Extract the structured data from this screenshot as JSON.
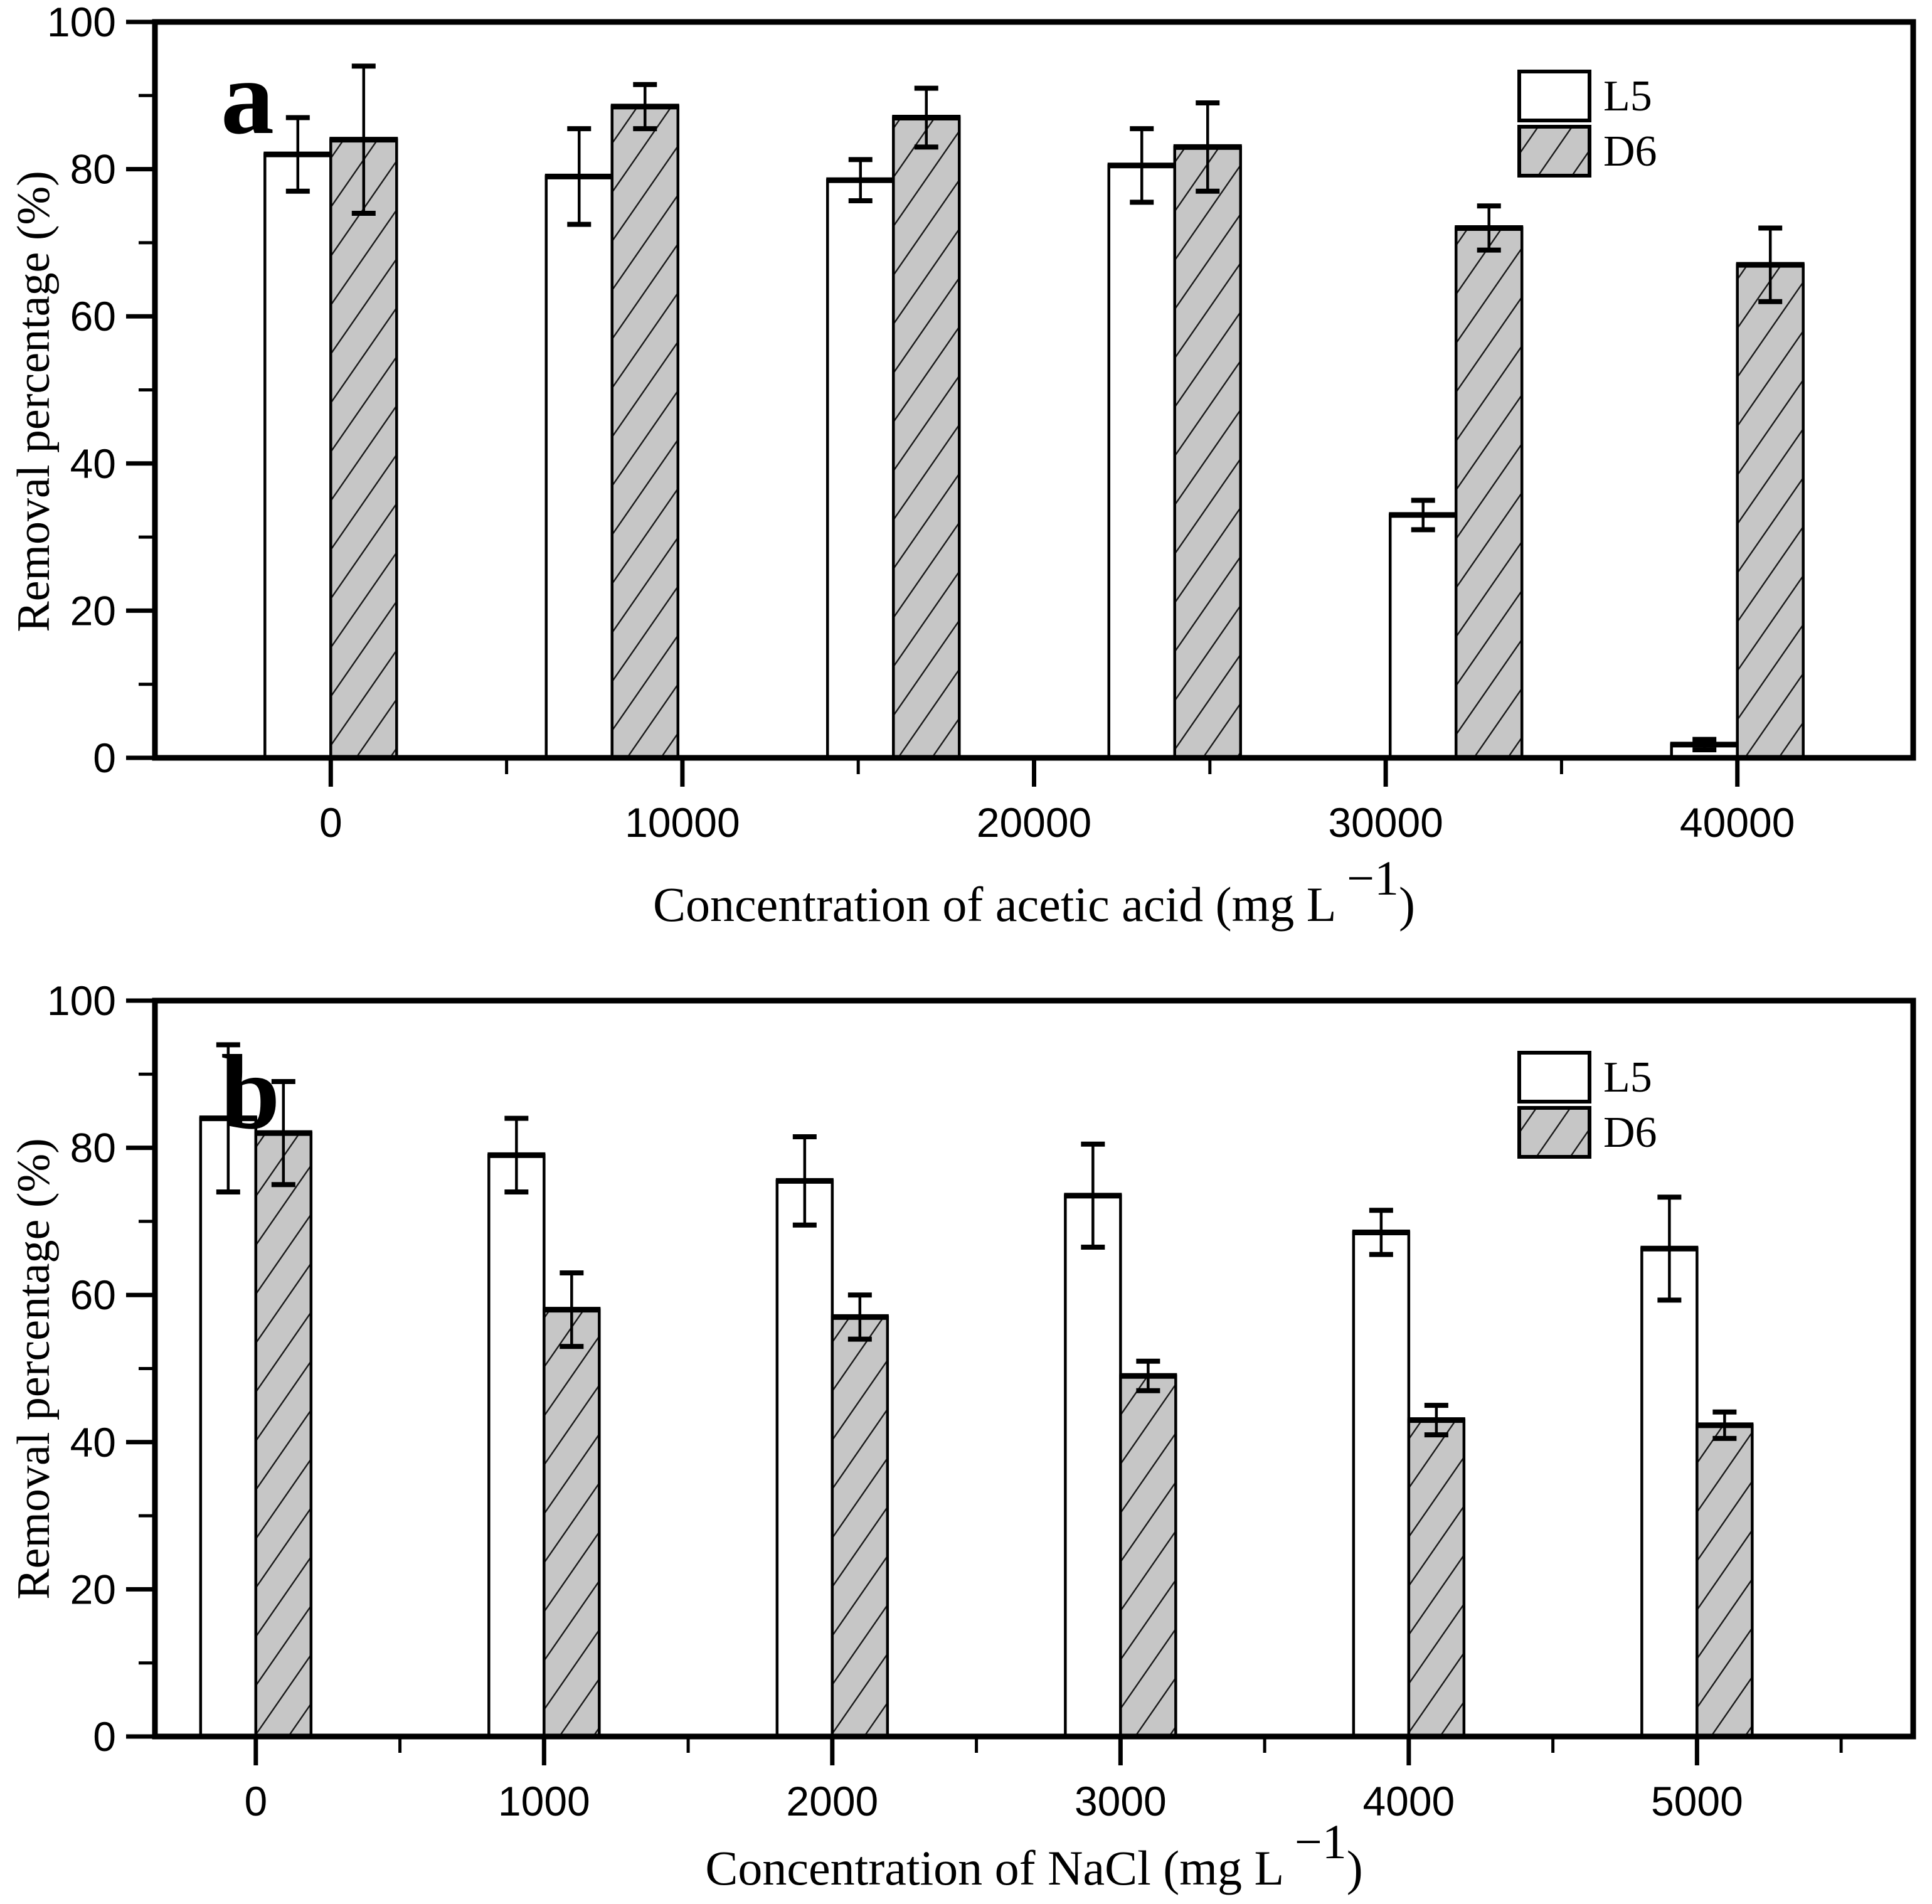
{
  "figure": {
    "background": "#ffffff",
    "axis_color": "#000000",
    "bar_fill_L5": "#ffffff",
    "bar_fill_D6": "#c6c6c6",
    "hatch_color": "#1a1a1a"
  },
  "chart_data": [
    {
      "id": "a",
      "type": "bar",
      "panel_label": "a",
      "xlabel_main": "Concentration of acetic acid (mg L",
      "xlabel_sup": "−1",
      "xlabel_close": ")",
      "ylabel": "Removal percentage (%)",
      "ylim": [
        0,
        100
      ],
      "y_major_ticks": [
        0,
        20,
        40,
        60,
        80,
        100
      ],
      "y_minor_step": 10,
      "xlim": [
        -5000,
        45000
      ],
      "x_major_ticks": [
        0,
        10000,
        20000,
        30000,
        40000
      ],
      "x_minor_step": 5000,
      "categories": [
        0,
        8000,
        16000,
        24000,
        32000,
        40000
      ],
      "legend": [
        "L5",
        "D6"
      ],
      "legend_position": "top-right",
      "grid": false,
      "series": [
        {
          "name": "L5",
          "hatch": false,
          "values": [
            82,
            79,
            78.5,
            80.5,
            33,
            1.8
          ],
          "errors": [
            5,
            6.5,
            2.8,
            5,
            2,
            0.7
          ]
        },
        {
          "name": "D6",
          "hatch": true,
          "values": [
            84,
            88.5,
            87,
            83,
            72,
            67
          ],
          "errors": [
            10,
            3,
            4,
            6,
            3,
            5
          ]
        }
      ]
    },
    {
      "id": "b",
      "type": "bar",
      "panel_label": "b",
      "xlabel_main": "Concentration of NaCl (mg L",
      "xlabel_sup": "−1",
      "xlabel_close": ")",
      "ylabel": "Removal percentage (%)",
      "ylim": [
        0,
        100
      ],
      "y_major_ticks": [
        0,
        20,
        40,
        60,
        80,
        100
      ],
      "y_minor_step": 10,
      "xlim": [
        -350,
        5750
      ],
      "x_major_ticks": [
        0,
        1000,
        2000,
        3000,
        4000,
        5000
      ],
      "x_minor_step": 500,
      "categories": [
        0,
        1000,
        2000,
        3000,
        4000,
        5000
      ],
      "legend": [
        "L5",
        "D6"
      ],
      "legend_position": "top-right",
      "grid": false,
      "series": [
        {
          "name": "L5",
          "hatch": false,
          "values": [
            84,
            79,
            75.5,
            73.5,
            68.5,
            66.3
          ],
          "errors": [
            10,
            5,
            6,
            7,
            3,
            7
          ]
        },
        {
          "name": "D6",
          "hatch": true,
          "values": [
            82,
            58,
            57,
            49,
            43,
            42.3
          ],
          "errors": [
            7,
            5,
            3,
            2,
            2,
            1.8
          ]
        }
      ]
    }
  ]
}
